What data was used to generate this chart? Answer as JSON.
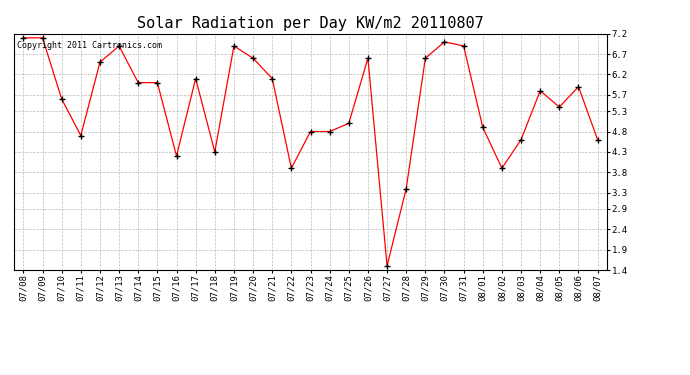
{
  "title": "Solar Radiation per Day KW/m2 20110807",
  "copyright_text": "Copyright 2011 Cartronics.com",
  "dates": [
    "07/08",
    "07/09",
    "07/10",
    "07/11",
    "07/12",
    "07/13",
    "07/14",
    "07/15",
    "07/16",
    "07/17",
    "07/18",
    "07/19",
    "07/20",
    "07/21",
    "07/22",
    "07/23",
    "07/24",
    "07/25",
    "07/26",
    "07/27",
    "07/28",
    "07/29",
    "07/30",
    "07/31",
    "08/01",
    "08/02",
    "08/03",
    "08/04",
    "08/05",
    "08/06",
    "08/07"
  ],
  "values": [
    7.1,
    7.1,
    5.6,
    4.7,
    6.5,
    6.9,
    6.0,
    6.0,
    4.2,
    6.1,
    4.3,
    6.9,
    6.6,
    6.1,
    3.9,
    4.8,
    4.8,
    5.0,
    6.6,
    1.5,
    3.4,
    6.6,
    7.0,
    6.9,
    4.9,
    3.9,
    4.6,
    5.8,
    5.4,
    5.9,
    4.6
  ],
  "ylim": [
    1.4,
    7.2
  ],
  "yticks": [
    1.4,
    1.9,
    2.4,
    2.9,
    3.3,
    3.8,
    4.3,
    4.8,
    5.3,
    5.7,
    6.2,
    6.7,
    7.2
  ],
  "ytick_labels": [
    "1.4",
    "1.9",
    "2.4",
    "2.9",
    "3.3",
    "3.8",
    "4.3",
    "4.8",
    "5.3",
    "5.7",
    "6.2",
    "6.7",
    "7.2"
  ],
  "line_color": "red",
  "marker": "+",
  "marker_color": "black",
  "bg_color": "white",
  "grid_color": "#bbbbbb",
  "title_fontsize": 11,
  "tick_fontsize": 6.5,
  "copyright_fontsize": 6.0
}
